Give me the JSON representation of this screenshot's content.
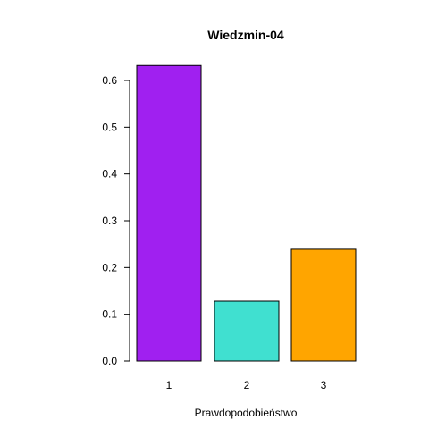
{
  "chart_data": {
    "type": "bar",
    "title": "Wiedzmin-04",
    "xlabel": "Prawdopodobieństwo",
    "ylabel": "",
    "categories": [
      "1",
      "2",
      "3"
    ],
    "values": [
      0.632,
      0.128,
      0.239
    ],
    "colors": [
      "#A020F0",
      "#40E0D0",
      "#FFA500"
    ],
    "ylim": [
      0,
      0.6
    ],
    "yticks": [
      "0.0",
      "0.1",
      "0.2",
      "0.3",
      "0.4",
      "0.5",
      "0.6"
    ],
    "grid": false,
    "legend": "none"
  }
}
